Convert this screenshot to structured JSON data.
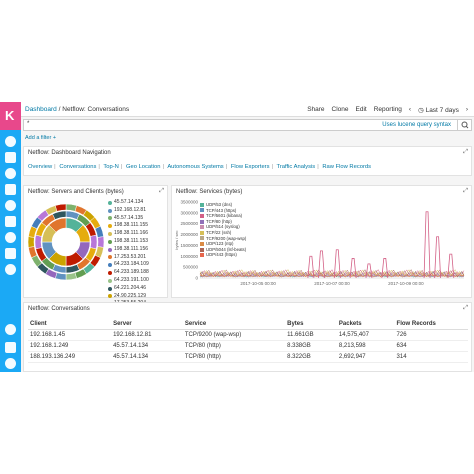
{
  "topbar": {
    "breadcrumb_root": "Dashboard",
    "breadcrumb_sep": "/",
    "breadcrumb_current": "Netflow: Conversations",
    "menu": [
      "Share",
      "Clone",
      "Edit",
      "Reporting"
    ],
    "time_label": "Last 7 days"
  },
  "query": {
    "value": "*",
    "hint": "Uses lucene query syntax"
  },
  "add_filter": "Add a filter +",
  "nav_panel": {
    "title": "Netflow: Dashboard Navigation",
    "links": [
      "Overview",
      "Conversations",
      "Top-N",
      "Geo Location",
      "Autonomous Systems",
      "Flow Exporters",
      "Traffic Analysis",
      "Raw Flow Records"
    ]
  },
  "servers_panel": {
    "title": "Netflow: Servers and Clients (bytes)",
    "legend": [
      {
        "label": "45.57.14.134",
        "color": "#54b399"
      },
      {
        "label": "192.168.12.81",
        "color": "#6092c0"
      },
      {
        "label": "45.57.14.135",
        "color": "#7eb26d"
      },
      {
        "label": "198.38.111.155",
        "color": "#e5ac0e"
      },
      {
        "label": "198.38.111.166",
        "color": "#d6bf57"
      },
      {
        "label": "198.38.111.153",
        "color": "#629e51"
      },
      {
        "label": "198.38.111.156",
        "color": "#9467bd"
      },
      {
        "label": "17.253.53.201",
        "color": "#e0752d"
      },
      {
        "label": "64.233.184.109",
        "color": "#447ebc"
      },
      {
        "label": "64.233.189.188",
        "color": "#bf1b00"
      },
      {
        "label": "64.233.191.100",
        "color": "#9ac48a"
      },
      {
        "label": "64.221.204.46",
        "color": "#2f575e"
      },
      {
        "label": "24.90.225.129",
        "color": "#cca300"
      },
      {
        "label": "17.253.55.204",
        "color": "#b877d9"
      }
    ]
  },
  "services_panel": {
    "title": "Netflow: Services (bytes)",
    "y_axis_label": "bytes / sec"
  },
  "chart_data": {
    "type": "line",
    "x_ticks": [
      "2017-10-05 00:00",
      "2017-10-07 00:00",
      "2017-10-09 00:00"
    ],
    "ylim": [
      0,
      3500000
    ],
    "y_ticks": [
      "3500000",
      "3000000",
      "2500000",
      "2000000",
      "1500000",
      "1000000",
      "500000",
      "0"
    ],
    "series": [
      {
        "name": "UDP/53 (dns)",
        "color": "#54b399"
      },
      {
        "name": "TCP/443 (https)",
        "color": "#6092c0"
      },
      {
        "name": "TCP/5601 (kibana)",
        "color": "#d36086"
      },
      {
        "name": "TCP/80 (http)",
        "color": "#9170b8"
      },
      {
        "name": "UDP/514 (syslog)",
        "color": "#ca8eae"
      },
      {
        "name": "TCP/22 (ssh)",
        "color": "#d6bf57"
      },
      {
        "name": "TCP/9200 (wap-wsp)",
        "color": "#b9a888"
      },
      {
        "name": "UDP/123 (ntp)",
        "color": "#da8b45"
      },
      {
        "name": "UDP/5044 (lsf-beats)",
        "color": "#aa6556"
      },
      {
        "name": "UDP/443 (https)",
        "color": "#e7664c"
      }
    ],
    "spikes_series": "TCP/5601 (kibana)"
  },
  "conversations": {
    "title": "Netflow: Conversations",
    "columns": [
      "Client",
      "Server",
      "Service",
      "Bytes",
      "Packets",
      "Flow Records"
    ],
    "rows": [
      [
        "192.168.1.45",
        "192.168.12.81",
        "TCP/9200 (wap-wsp)",
        "11.661GB",
        "14,575,407",
        "726"
      ],
      [
        "192.168.1.249",
        "45.57.14.134",
        "TCP/80 (http)",
        "8.338GB",
        "8,213,598",
        "634"
      ],
      [
        "188.193.136.249",
        "45.57.14.134",
        "TCP/80 (http)",
        "8.322GB",
        "2,692,947",
        "314"
      ]
    ]
  }
}
